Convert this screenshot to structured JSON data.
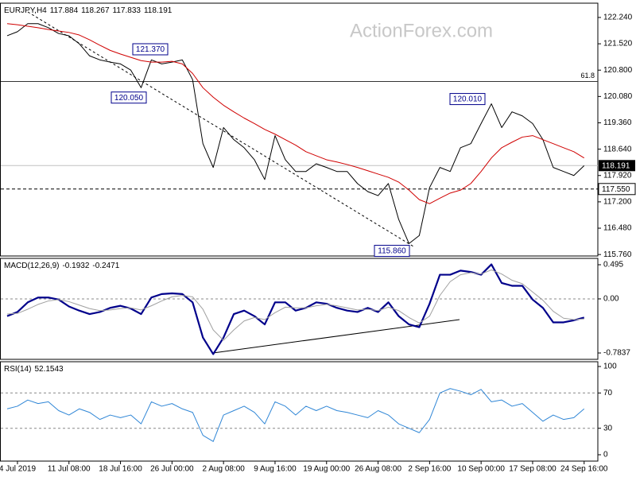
{
  "chart_data": [
    {
      "type": "line",
      "title": "EURJPY,H4",
      "ohlc": [
        117.884,
        118.267,
        117.833,
        118.191
      ],
      "watermark": "ActionForex.com",
      "ylim": [
        115.72,
        122.63
      ],
      "yticks": [
        {
          "value": 122.24,
          "label": "122.240"
        },
        {
          "value": 121.52,
          "label": "121.520"
        },
        {
          "value": 120.8,
          "label": "120.800"
        },
        {
          "value": 120.08,
          "label": "120.080"
        },
        {
          "value": 119.36,
          "label": "119.360"
        },
        {
          "value": 118.64,
          "label": "118.640"
        },
        {
          "value": 117.92,
          "label": "117.920"
        },
        {
          "value": 117.2,
          "label": "117.200"
        },
        {
          "value": 116.48,
          "label": "116.480"
        },
        {
          "value": 115.76,
          "label": "115.760"
        }
      ],
      "series": [
        {
          "name": "Close",
          "color": "#000000",
          "width": 1,
          "values": [
            121.74,
            121.85,
            122.07,
            122.07,
            121.96,
            121.8,
            121.74,
            121.52,
            121.19,
            121.08,
            121.02,
            120.97,
            120.8,
            120.32,
            121.08,
            120.97,
            121.02,
            121.08,
            120.54,
            118.79,
            118.14,
            119.23,
            118.9,
            118.68,
            118.35,
            117.81,
            119.01,
            118.35,
            118.03,
            118.03,
            118.24,
            118.14,
            118.03,
            118.03,
            117.7,
            117.48,
            117.37,
            117.7,
            116.72,
            116.06,
            116.28,
            117.59,
            118.14,
            118.03,
            118.68,
            118.79,
            119.34,
            119.88,
            119.23,
            119.66,
            119.55,
            119.34,
            118.9,
            118.14,
            118.03,
            117.92,
            118.19
          ]
        },
        {
          "name": "MA",
          "color": "#d00000",
          "width": 1,
          "values": [
            122.07,
            122.04,
            122.0,
            121.96,
            121.91,
            121.87,
            121.83,
            121.76,
            121.63,
            121.48,
            121.34,
            121.24,
            121.15,
            121.06,
            121.02,
            121.02,
            121.04,
            120.97,
            120.71,
            120.32,
            120.06,
            119.84,
            119.66,
            119.49,
            119.34,
            119.18,
            119.05,
            118.9,
            118.75,
            118.57,
            118.46,
            118.35,
            118.29,
            118.22,
            118.14,
            118.05,
            117.96,
            117.87,
            117.74,
            117.52,
            117.26,
            117.15,
            117.3,
            117.44,
            117.52,
            117.7,
            118.03,
            118.4,
            118.68,
            118.83,
            118.97,
            119.01,
            118.9,
            118.79,
            118.68,
            118.57,
            118.4
          ]
        }
      ],
      "annotations": [
        {
          "value": 121.37,
          "label": "121.370"
        },
        {
          "value": 120.05,
          "label": "120.050"
        },
        {
          "value": 120.01,
          "label": "120.010"
        },
        {
          "value": 115.86,
          "label": "115.860"
        }
      ],
      "fib_label": "61.8",
      "fib_level": 120.49,
      "last_price": 118.191,
      "dashed_level": {
        "value": 117.55,
        "label": "117.550"
      }
    },
    {
      "type": "line",
      "title": "MACD(12,26,9)",
      "header_values": [
        -0.1932,
        -0.2471
      ],
      "ylim": [
        -0.876,
        0.587
      ],
      "yticks": [
        0.495,
        {
          "value": 0,
          "label": "0.00"
        },
        -0.7837
      ],
      "levels": [
        0
      ],
      "series": [
        {
          "name": "MACD",
          "color": "#00008b",
          "width": 2.2,
          "values": [
            -0.25,
            -0.19,
            -0.05,
            0.02,
            0.02,
            -0.01,
            -0.11,
            -0.17,
            -0.22,
            -0.19,
            -0.13,
            -0.1,
            -0.14,
            -0.22,
            0.02,
            0.07,
            0.08,
            0.07,
            -0.05,
            -0.56,
            -0.8,
            -0.56,
            -0.22,
            -0.17,
            -0.25,
            -0.37,
            -0.05,
            -0.05,
            -0.17,
            -0.13,
            -0.05,
            -0.07,
            -0.13,
            -0.17,
            -0.19,
            -0.13,
            -0.19,
            -0.05,
            -0.25,
            -0.37,
            -0.41,
            -0.07,
            0.35,
            0.35,
            0.41,
            0.39,
            0.35,
            0.5,
            0.23,
            0.19,
            0.19,
            -0.01,
            -0.13,
            -0.34,
            -0.34,
            -0.31,
            -0.27
          ]
        },
        {
          "name": "Signal",
          "color": "#a0a0a0",
          "width": 1,
          "values": [
            -0.22,
            -0.21,
            -0.15,
            -0.08,
            -0.03,
            -0.01,
            -0.04,
            -0.09,
            -0.14,
            -0.17,
            -0.16,
            -0.14,
            -0.13,
            -0.16,
            -0.1,
            -0.03,
            0.03,
            0.05,
            0.03,
            -0.15,
            -0.45,
            -0.6,
            -0.45,
            -0.32,
            -0.27,
            -0.3,
            -0.2,
            -0.12,
            -0.13,
            -0.13,
            -0.1,
            -0.08,
            -0.1,
            -0.13,
            -0.16,
            -0.15,
            -0.17,
            -0.12,
            -0.17,
            -0.27,
            -0.35,
            -0.25,
            0.05,
            0.25,
            0.35,
            0.38,
            0.36,
            0.42,
            0.36,
            0.27,
            0.22,
            0.1,
            -0.02,
            -0.18,
            -0.28,
            -0.3,
            -0.29
          ]
        }
      ]
    },
    {
      "type": "line",
      "title": "RSI(14)",
      "header_values": [
        52.1543
      ],
      "ylim": [
        -7.2,
        105.4
      ],
      "yticks": [
        100,
        70,
        30,
        0
      ],
      "levels": [
        70,
        30
      ],
      "categories": [
        null,
        "4 Jul 2019",
        null,
        null,
        null,
        null,
        "11 Jul 08:00",
        null,
        null,
        null,
        null,
        "18 Jul 16:00",
        null,
        null,
        null,
        null,
        "26 Jul 00:00",
        null,
        null,
        null,
        null,
        "2 Aug 08:00",
        null,
        null,
        null,
        null,
        "9 Aug 16:00",
        null,
        null,
        null,
        null,
        "19 Aug 00:00",
        null,
        null,
        null,
        null,
        "26 Aug 08:00",
        null,
        null,
        null,
        null,
        "2 Sep 16:00",
        null,
        null,
        null,
        null,
        "10 Sep 00:00",
        null,
        null,
        null,
        null,
        "17 Sep 08:00",
        null,
        null,
        null,
        null,
        "24 Sep 16:00"
      ],
      "series": [
        {
          "name": "RSI",
          "color": "#2f86d6",
          "width": 1,
          "values": [
            52,
            55,
            62,
            58,
            60,
            50,
            45,
            52,
            48,
            40,
            45,
            42,
            45,
            35,
            60,
            55,
            58,
            52,
            48,
            22,
            15,
            45,
            50,
            55,
            48,
            35,
            60,
            55,
            45,
            55,
            50,
            55,
            50,
            48,
            45,
            42,
            50,
            45,
            35,
            30,
            25,
            40,
            70,
            75,
            72,
            68,
            74,
            60,
            62,
            55,
            58,
            48,
            38,
            45,
            40,
            42,
            52
          ]
        }
      ]
    }
  ]
}
